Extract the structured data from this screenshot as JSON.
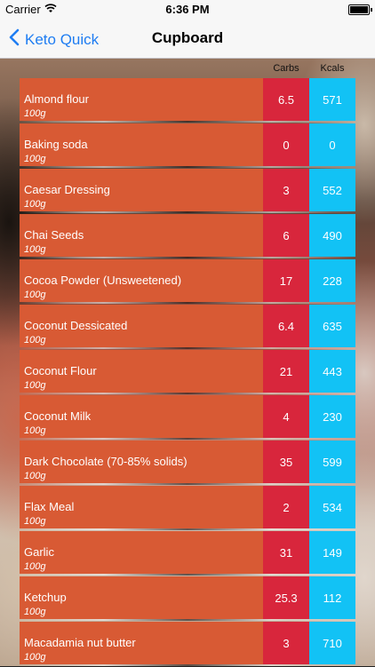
{
  "status_bar": {
    "carrier": "Carrier",
    "time": "6:36 PM"
  },
  "nav": {
    "back_label": "Keto Quick",
    "title": "Cupboard"
  },
  "columns": {
    "carbs": "Carbs",
    "kcals": "Kcals"
  },
  "colors": {
    "row_name_bg": "#d85a34",
    "carbs_bg": "#d8263c",
    "kcals_bg": "#12c2f5",
    "accent": "#1f7df2"
  },
  "items": [
    {
      "name": "Almond flour",
      "amount": "100g",
      "carbs": "6.5",
      "kcals": "571"
    },
    {
      "name": "Baking soda",
      "amount": "100g",
      "carbs": "0",
      "kcals": "0"
    },
    {
      "name": "Caesar Dressing",
      "amount": "100g",
      "carbs": "3",
      "kcals": "552"
    },
    {
      "name": "Chai Seeds",
      "amount": "100g",
      "carbs": "6",
      "kcals": "490"
    },
    {
      "name": "Cocoa Powder (Unsweetened)",
      "amount": "100g",
      "carbs": "17",
      "kcals": "228"
    },
    {
      "name": "Coconut Dessicated",
      "amount": "100g",
      "carbs": "6.4",
      "kcals": "635"
    },
    {
      "name": "Coconut Flour",
      "amount": "100g",
      "carbs": "21",
      "kcals": "443"
    },
    {
      "name": "Coconut Milk",
      "amount": "100g",
      "carbs": "4",
      "kcals": "230"
    },
    {
      "name": "Dark Chocolate (70-85% solids)",
      "amount": "100g",
      "carbs": "35",
      "kcals": "599"
    },
    {
      "name": "Flax Meal",
      "amount": "100g",
      "carbs": "2",
      "kcals": "534"
    },
    {
      "name": "Garlic",
      "amount": "100g",
      "carbs": "31",
      "kcals": "149"
    },
    {
      "name": "Ketchup",
      "amount": "100g",
      "carbs": "25.3",
      "kcals": "112"
    },
    {
      "name": "Macadamia nut butter",
      "amount": "100g",
      "carbs": "3",
      "kcals": "710"
    }
  ]
}
